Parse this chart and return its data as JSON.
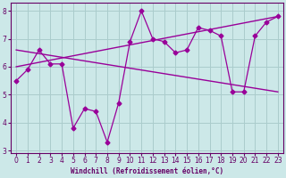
{
  "x": [
    0,
    1,
    2,
    3,
    4,
    5,
    6,
    7,
    8,
    9,
    10,
    11,
    12,
    13,
    14,
    15,
    16,
    17,
    18,
    19,
    20,
    21,
    22,
    23
  ],
  "y_main": [
    5.5,
    5.9,
    6.6,
    6.1,
    6.1,
    3.8,
    4.5,
    4.4,
    3.3,
    4.7,
    6.9,
    8.0,
    7.0,
    6.9,
    6.5,
    6.6,
    7.4,
    7.3,
    7.1,
    5.1,
    5.1,
    7.1,
    7.6,
    7.8
  ],
  "trend1_start": 6.6,
  "trend1_end": 5.1,
  "trend2_start": 6.0,
  "trend2_end": 7.8,
  "line_color": "#990099",
  "bg_color": "#cce8e8",
  "grid_color": "#aacccc",
  "axis_color": "#660066",
  "xlabel": "Windchill (Refroidissement éolien,°C)",
  "ylim_min": 2.9,
  "ylim_max": 8.3,
  "xlim_min": -0.5,
  "xlim_max": 23.5,
  "yticks": [
    3,
    4,
    5,
    6,
    7,
    8
  ],
  "xticks": [
    0,
    1,
    2,
    3,
    4,
    5,
    6,
    7,
    8,
    9,
    10,
    11,
    12,
    13,
    14,
    15,
    16,
    17,
    18,
    19,
    20,
    21,
    22,
    23
  ]
}
